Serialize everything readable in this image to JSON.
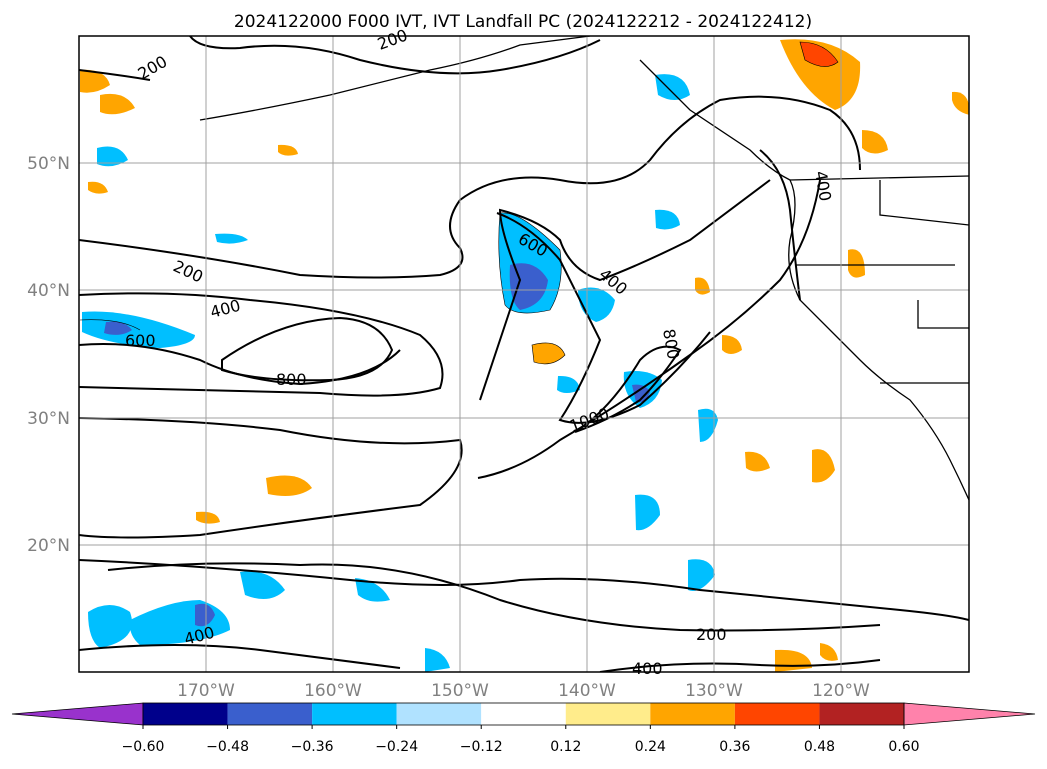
{
  "title": "2024122000 F000 IVT, IVT Landfall PC (2024122212 - 2024122412)",
  "map": {
    "lat_labels": [
      "50°N",
      "40°N",
      "30°N",
      "20°N"
    ],
    "lon_labels": [
      "170°W",
      "160°W",
      "150°W",
      "140°W",
      "130°W",
      "120°W"
    ],
    "grid_color": "#a0a0a0",
    "label_color": "#808080"
  },
  "contour_labels": [
    {
      "text": "200"
    },
    {
      "text": "200"
    },
    {
      "text": "200"
    },
    {
      "text": "400"
    },
    {
      "text": "600"
    },
    {
      "text": "800"
    },
    {
      "text": "600"
    },
    {
      "text": "400"
    },
    {
      "text": "800"
    },
    {
      "text": "1000"
    },
    {
      "text": "400"
    },
    {
      "text": "200"
    },
    {
      "text": "400"
    },
    {
      "text": "400"
    }
  ],
  "colorbar": {
    "colors": [
      "#9932cc",
      "#00008b",
      "#3a5fcd",
      "#00bfff",
      "#b0e2ff",
      "#ffffff",
      "#ffec8b",
      "#ffa500",
      "#ff4500",
      "#b22222",
      "#ff82ab"
    ],
    "tick_labels": [
      "−0.60",
      "−0.48",
      "−0.36",
      "−0.24",
      "−0.12",
      "0.12",
      "0.24",
      "0.36",
      "0.48",
      "0.60"
    ],
    "extend": "both"
  }
}
